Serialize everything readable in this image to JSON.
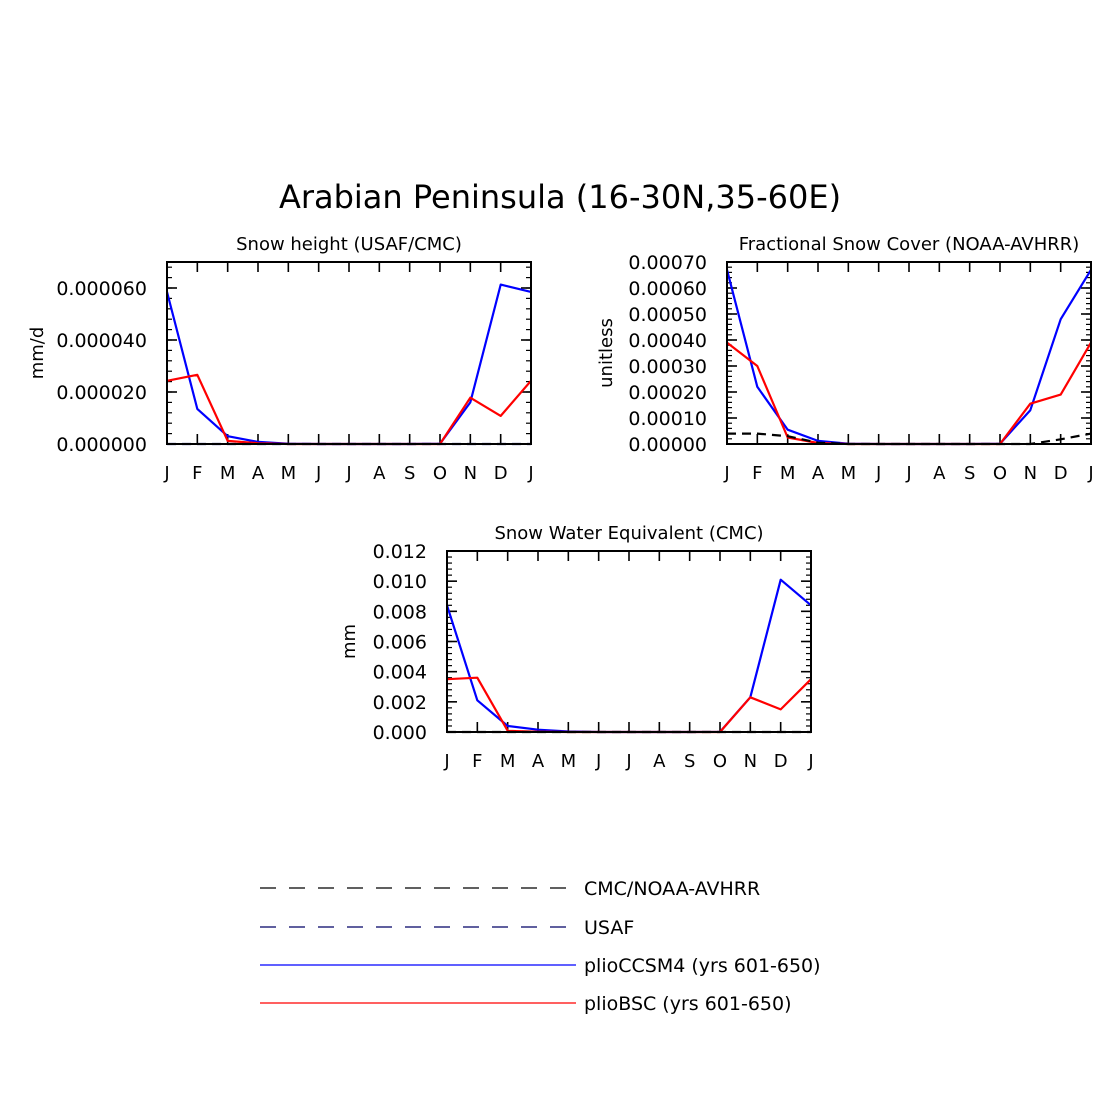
{
  "figure": {
    "title": "Arabian Peninsula (16-30N,35-60E)"
  },
  "colors": {
    "plioCCSM4": "#0000ff",
    "plioBSC": "#ff0000",
    "obs": "#000000"
  },
  "legend": [
    {
      "label": "CMC/NOAA-AVHRR",
      "style": "dashed",
      "color": "#000000"
    },
    {
      "label": "USAF",
      "style": "dashed-navy",
      "color": "#000066"
    },
    {
      "label": "plioCCSM4 (yrs 601-650)",
      "style": "solid",
      "color": "#0000ff"
    },
    {
      "label": "plioBSC (yrs 601-650)",
      "style": "solid",
      "color": "#ff0000"
    }
  ],
  "chart_data": [
    {
      "type": "line",
      "title": "Snow height (USAF/CMC)",
      "ylabel": "mm/d",
      "xlabel": "",
      "categories": [
        "J",
        "F",
        "M",
        "A",
        "M",
        "J",
        "J",
        "A",
        "S",
        "O",
        "N",
        "D",
        "J"
      ],
      "ylim": [
        0,
        7e-05
      ],
      "yticks": [
        0,
        2e-05,
        4e-05,
        6e-05
      ],
      "ytick_labels": [
        "0.000000",
        "0.000020",
        "0.000040",
        "0.000060"
      ],
      "series": [
        {
          "name": "plioCCSM4 (yrs 601-650)",
          "color": "#0000ff",
          "style": "solid",
          "values": [
            5.85e-05,
            1.35e-05,
            3e-06,
            8e-07,
            1e-07,
            0,
            0,
            0,
            0,
            1e-07,
            1.6e-05,
            6.13e-05,
            5.85e-05
          ]
        },
        {
          "name": "plioBSC (yrs 601-650)",
          "color": "#ff0000",
          "style": "solid",
          "values": [
            2.43e-05,
            2.66e-05,
            1.2e-06,
            3e-07,
            0,
            0,
            0,
            0,
            0,
            0,
            1.78e-05,
            1.08e-05,
            2.43e-05
          ]
        },
        {
          "name": "USAF",
          "color": "#000066",
          "style": "dashed",
          "values": [
            0,
            0,
            0,
            0,
            0,
            0,
            0,
            0,
            0,
            0,
            0,
            0,
            0
          ]
        }
      ]
    },
    {
      "type": "line",
      "title": "Fractional Snow Cover (NOAA-AVHRR)",
      "ylabel": "unitless",
      "xlabel": "",
      "categories": [
        "J",
        "F",
        "M",
        "A",
        "M",
        "J",
        "J",
        "A",
        "S",
        "O",
        "N",
        "D",
        "J"
      ],
      "ylim": [
        0,
        0.0007
      ],
      "yticks": [
        0,
        0.0001,
        0.0002,
        0.0003,
        0.0004,
        0.0005,
        0.0006,
        0.0007
      ],
      "ytick_labels": [
        "0.00000",
        "0.00010",
        "0.00020",
        "0.00030",
        "0.00040",
        "0.00050",
        "0.00060",
        "0.00070"
      ],
      "series": [
        {
          "name": "plioCCSM4 (yrs 601-650)",
          "color": "#0000ff",
          "style": "solid",
          "values": [
            0.00067,
            0.00022,
            5.5e-05,
            1.2e-05,
            1e-06,
            0,
            0,
            0,
            0,
            1e-06,
            0.00013,
            0.00048,
            0.00067
          ]
        },
        {
          "name": "plioBSC (yrs 601-650)",
          "color": "#ff0000",
          "style": "solid",
          "values": [
            0.00039,
            0.0003,
            2.5e-05,
            4e-06,
            0,
            0,
            0,
            0,
            0,
            0,
            0.000155,
            0.00019,
            0.00039
          ]
        },
        {
          "name": "CMC/NOAA-AVHRR",
          "color": "#000000",
          "style": "dashed",
          "values": [
            4e-05,
            4e-05,
            3e-05,
            5e-06,
            0,
            0,
            0,
            0,
            0,
            0,
            0,
            1.8e-05,
            4e-05
          ]
        }
      ]
    },
    {
      "type": "line",
      "title": "Snow Water Equivalent (CMC)",
      "ylabel": "mm",
      "xlabel": "",
      "categories": [
        "J",
        "F",
        "M",
        "A",
        "M",
        "J",
        "J",
        "A",
        "S",
        "O",
        "N",
        "D",
        "J"
      ],
      "ylim": [
        0,
        0.012
      ],
      "yticks": [
        0,
        0.002,
        0.004,
        0.006,
        0.008,
        0.01,
        0.012
      ],
      "ytick_labels": [
        "0.000",
        "0.002",
        "0.004",
        "0.006",
        "0.008",
        "0.010",
        "0.012"
      ],
      "series": [
        {
          "name": "plioCCSM4 (yrs 601-650)",
          "color": "#0000ff",
          "style": "solid",
          "values": [
            0.0084,
            0.0021,
            0.0004,
            0.00015,
            3e-05,
            0,
            0,
            0,
            0,
            1e-05,
            0.0023,
            0.0101,
            0.0084
          ]
        },
        {
          "name": "plioBSC (yrs 601-650)",
          "color": "#ff0000",
          "style": "solid",
          "values": [
            0.0035,
            0.0036,
            8e-05,
            2e-05,
            0,
            0,
            0,
            0,
            0,
            0,
            0.0023,
            0.0015,
            0.0035
          ]
        },
        {
          "name": "CMC/NOAA-AVHRR",
          "color": "#000000",
          "style": "dashed",
          "values": [
            0,
            0,
            0,
            0,
            0,
            0,
            0,
            0,
            0,
            0,
            0,
            0,
            0
          ]
        }
      ]
    }
  ]
}
